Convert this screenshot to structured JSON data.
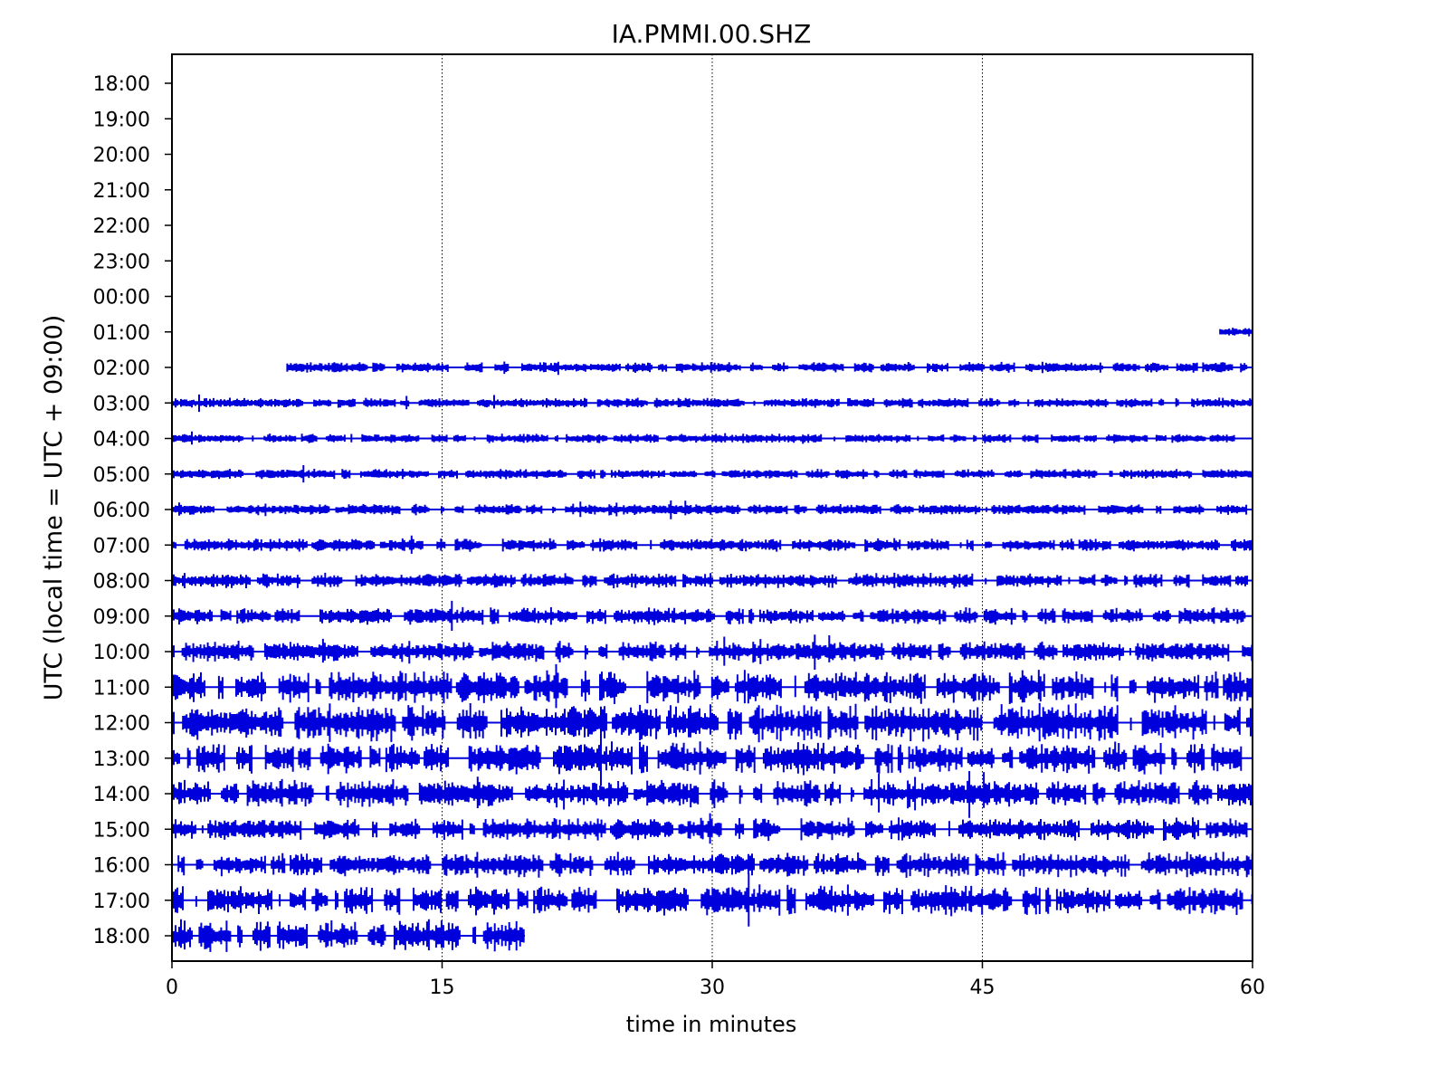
{
  "chart_data": {
    "type": "line",
    "title": "IA.PMMI.00.SHZ",
    "xlabel": "time in minutes",
    "ylabel": "UTC (local time = UTC + 09:00)",
    "xlim": [
      0,
      60
    ],
    "x_ticks": [
      "0",
      "15",
      "30",
      "45",
      "60"
    ],
    "x_tick_values": [
      0,
      15,
      30,
      45,
      60
    ],
    "x_grid": "dotted vertical lines at 15, 30, 45",
    "y_tick_labels": [
      "18:00",
      "19:00",
      "20:00",
      "21:00",
      "22:00",
      "23:00",
      "00:00",
      "01:00",
      "02:00",
      "03:00",
      "04:00",
      "05:00",
      "06:00",
      "07:00",
      "08:00",
      "09:00",
      "10:00",
      "11:00",
      "12:00",
      "13:00",
      "14:00",
      "15:00",
      "16:00",
      "17:00",
      "18:00"
    ],
    "trace_color": "#0000dd",
    "traces": [
      {
        "hour": "18:00",
        "start_min": null,
        "end_min": null,
        "amplitude": 0
      },
      {
        "hour": "19:00",
        "start_min": null,
        "end_min": null,
        "amplitude": 0
      },
      {
        "hour": "20:00",
        "start_min": null,
        "end_min": null,
        "amplitude": 0
      },
      {
        "hour": "21:00",
        "start_min": null,
        "end_min": null,
        "amplitude": 0
      },
      {
        "hour": "22:00",
        "start_min": null,
        "end_min": null,
        "amplitude": 0
      },
      {
        "hour": "23:00",
        "start_min": null,
        "end_min": null,
        "amplitude": 0
      },
      {
        "hour": "00:00",
        "start_min": null,
        "end_min": null,
        "amplitude": 0
      },
      {
        "hour": "01:00",
        "start_min": 58.2,
        "end_min": 60,
        "amplitude": 0.15
      },
      {
        "hour": "02:00",
        "start_min": 6.4,
        "end_min": 60,
        "amplitude": 0.2
      },
      {
        "hour": "03:00",
        "start_min": 0,
        "end_min": 60,
        "amplitude": 0.18
      },
      {
        "hour": "04:00",
        "start_min": 0,
        "end_min": 60,
        "amplitude": 0.16
      },
      {
        "hour": "05:00",
        "start_min": 0,
        "end_min": 60,
        "amplitude": 0.18
      },
      {
        "hour": "06:00",
        "start_min": 0,
        "end_min": 60,
        "amplitude": 0.22
      },
      {
        "hour": "07:00",
        "start_min": 0,
        "end_min": 60,
        "amplitude": 0.28
      },
      {
        "hour": "08:00",
        "start_min": 0,
        "end_min": 60,
        "amplitude": 0.32
      },
      {
        "hour": "09:00",
        "start_min": 0,
        "end_min": 60,
        "amplitude": 0.38
      },
      {
        "hour": "10:00",
        "start_min": 0,
        "end_min": 60,
        "amplitude": 0.5
      },
      {
        "hour": "11:00",
        "start_min": 0,
        "end_min": 60,
        "amplitude": 0.85
      },
      {
        "hour": "12:00",
        "start_min": 0,
        "end_min": 60,
        "amplitude": 0.95
      },
      {
        "hour": "13:00",
        "start_min": 0,
        "end_min": 60,
        "amplitude": 0.8
      },
      {
        "hour": "14:00",
        "start_min": 0,
        "end_min": 60,
        "amplitude": 0.7
      },
      {
        "hour": "15:00",
        "start_min": 0,
        "end_min": 60,
        "amplitude": 0.55
      },
      {
        "hour": "16:00",
        "start_min": 0,
        "end_min": 60,
        "amplitude": 0.6
      },
      {
        "hour": "17:00",
        "start_min": 0,
        "end_min": 60,
        "amplitude": 0.75
      },
      {
        "hour": "18:00",
        "start_min": 0,
        "end_min": 19.6,
        "amplitude": 0.8
      }
    ]
  }
}
